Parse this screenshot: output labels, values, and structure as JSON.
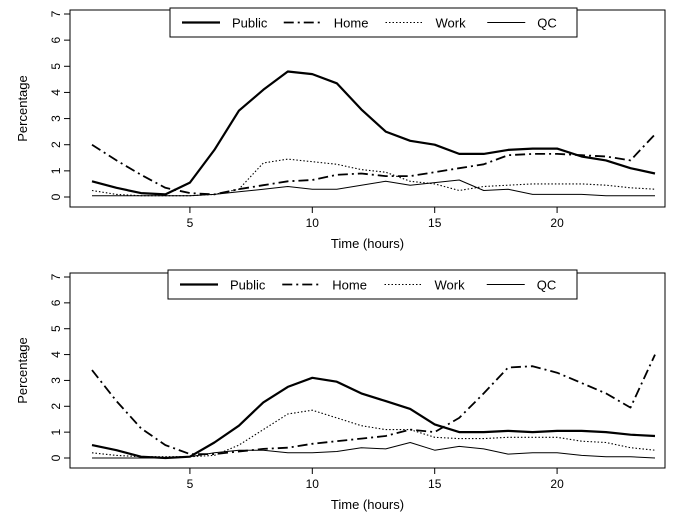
{
  "chart_data": [
    {
      "type": "line",
      "title": "",
      "xlabel": "Time (hours)",
      "ylabel": "Percentage",
      "xlim": [
        1,
        24
      ],
      "ylim": [
        0,
        7
      ],
      "xticks": [
        5,
        10,
        15,
        20
      ],
      "yticks": [
        0,
        1,
        2,
        3,
        4,
        5,
        6,
        7
      ],
      "legend_position": "top",
      "x": [
        1,
        2,
        3,
        4,
        5,
        6,
        7,
        8,
        9,
        10,
        11,
        12,
        13,
        14,
        15,
        16,
        17,
        18,
        19,
        20,
        21,
        22,
        23,
        24
      ],
      "series": [
        {
          "name": "Public",
          "style": "solid-thick",
          "values": [
            0.6,
            0.35,
            0.15,
            0.1,
            0.55,
            1.8,
            3.3,
            4.1,
            4.8,
            4.7,
            4.35,
            3.35,
            2.5,
            2.15,
            2.0,
            1.65,
            1.65,
            1.8,
            1.85,
            1.85,
            1.55,
            1.4,
            1.1,
            0.9
          ]
        },
        {
          "name": "Home",
          "style": "dashdot",
          "values": [
            2.0,
            1.4,
            0.85,
            0.35,
            0.15,
            0.1,
            0.3,
            0.45,
            0.6,
            0.65,
            0.85,
            0.9,
            0.8,
            0.8,
            0.95,
            1.1,
            1.25,
            1.6,
            1.65,
            1.65,
            1.6,
            1.55,
            1.4,
            2.4
          ]
        },
        {
          "name": "Work",
          "style": "dotted",
          "values": [
            0.25,
            0.1,
            0.05,
            0.05,
            0.05,
            0.1,
            0.3,
            1.3,
            1.45,
            1.35,
            1.25,
            1.05,
            0.95,
            0.6,
            0.5,
            0.25,
            0.4,
            0.45,
            0.5,
            0.5,
            0.5,
            0.45,
            0.35,
            0.3
          ]
        },
        {
          "name": "QC",
          "style": "solid-thin",
          "values": [
            0.05,
            0.05,
            0.05,
            0.05,
            0.05,
            0.1,
            0.2,
            0.3,
            0.4,
            0.3,
            0.3,
            0.45,
            0.6,
            0.45,
            0.55,
            0.65,
            0.25,
            0.3,
            0.1,
            0.1,
            0.1,
            0.05,
            0.05,
            0.05
          ]
        }
      ]
    },
    {
      "type": "line",
      "title": "",
      "xlabel": "Time (hours)",
      "ylabel": "Percentage",
      "xlim": [
        1,
        24
      ],
      "ylim": [
        0,
        7
      ],
      "xticks": [
        5,
        10,
        15,
        20
      ],
      "yticks": [
        0,
        1,
        2,
        3,
        4,
        5,
        6,
        7
      ],
      "legend_position": "top",
      "x": [
        1,
        2,
        3,
        4,
        5,
        6,
        7,
        8,
        9,
        10,
        11,
        12,
        13,
        14,
        15,
        16,
        17,
        18,
        19,
        20,
        21,
        22,
        23,
        24
      ],
      "series": [
        {
          "name": "Public",
          "style": "solid-thick",
          "values": [
            0.5,
            0.3,
            0.05,
            0.0,
            0.05,
            0.6,
            1.25,
            2.15,
            2.75,
            3.1,
            2.95,
            2.5,
            2.2,
            1.9,
            1.3,
            1.0,
            1.0,
            1.05,
            1.0,
            1.05,
            1.05,
            1.0,
            0.9,
            0.85
          ]
        },
        {
          "name": "Home",
          "style": "dashdot",
          "values": [
            3.4,
            2.2,
            1.15,
            0.5,
            0.15,
            0.15,
            0.25,
            0.35,
            0.4,
            0.55,
            0.65,
            0.75,
            0.85,
            1.1,
            1.0,
            1.55,
            2.5,
            3.5,
            3.55,
            3.3,
            2.9,
            2.5,
            1.95,
            4.0
          ]
        },
        {
          "name": "Work",
          "style": "dotted",
          "values": [
            0.2,
            0.1,
            0.05,
            0.05,
            0.05,
            0.1,
            0.5,
            1.1,
            1.7,
            1.85,
            1.55,
            1.25,
            1.1,
            1.1,
            0.8,
            0.75,
            0.75,
            0.8,
            0.8,
            0.8,
            0.65,
            0.6,
            0.4,
            0.3
          ]
        },
        {
          "name": "QC",
          "style": "solid-thin",
          "values": [
            0.0,
            0.0,
            0.0,
            0.0,
            0.05,
            0.2,
            0.3,
            0.3,
            0.2,
            0.2,
            0.25,
            0.4,
            0.35,
            0.6,
            0.3,
            0.45,
            0.35,
            0.15,
            0.2,
            0.2,
            0.1,
            0.05,
            0.05,
            0.0
          ]
        }
      ]
    }
  ]
}
